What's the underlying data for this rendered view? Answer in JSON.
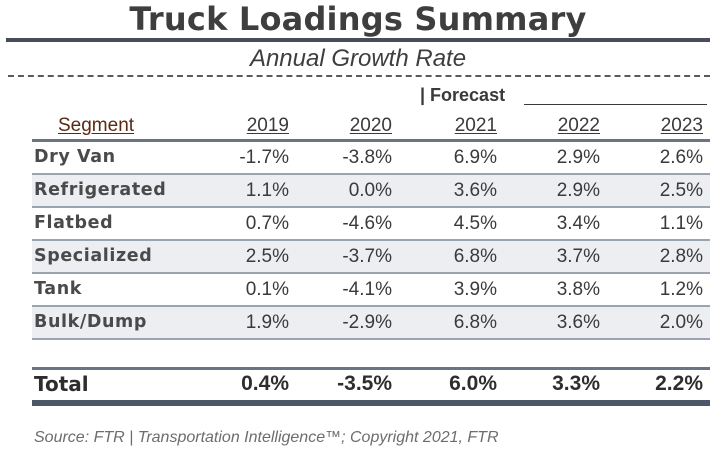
{
  "title": "Truck Loadings Summary",
  "subtitle": "Annual Growth Rate",
  "forecast_label": "| Forecast",
  "columns": {
    "segment": "Segment",
    "years": [
      "2019",
      "2020",
      "2021",
      "2022",
      "2023"
    ]
  },
  "rows": [
    {
      "segment": "Dry Van",
      "values": [
        "-1.7%",
        "-3.8%",
        "6.9%",
        "2.9%",
        "2.6%"
      ]
    },
    {
      "segment": "Refrigerated",
      "values": [
        "1.1%",
        "0.0%",
        "3.6%",
        "2.9%",
        "2.5%"
      ]
    },
    {
      "segment": "Flatbed",
      "values": [
        "0.7%",
        "-4.6%",
        "4.5%",
        "3.4%",
        "1.1%"
      ]
    },
    {
      "segment": "Specialized",
      "values": [
        "2.5%",
        "-3.7%",
        "6.8%",
        "3.7%",
        "2.8%"
      ]
    },
    {
      "segment": "Tank",
      "values": [
        "0.1%",
        "-4.1%",
        "3.9%",
        "3.8%",
        "1.2%"
      ]
    },
    {
      "segment": "Bulk/Dump",
      "values": [
        "1.9%",
        "-2.9%",
        "6.8%",
        "3.6%",
        "2.0%"
      ]
    }
  ],
  "total": {
    "segment": "Total",
    "values": [
      "0.4%",
      "-3.5%",
      "6.0%",
      "3.3%",
      "2.2%"
    ]
  },
  "source": "Source: FTR | Transportation Intelligence™; Copyright 2021, FTR"
}
